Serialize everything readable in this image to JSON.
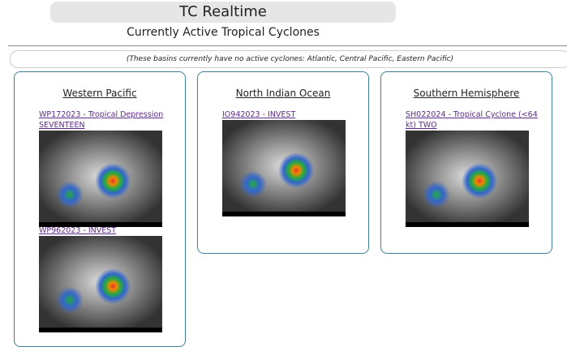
{
  "header": {
    "title": "TC Realtime",
    "subtitle": "Currently Active Tropical Cyclones"
  },
  "notice": "(These basins currently have no active cyclones: Atlantic, Central Pacific, Eastern Pacific)",
  "basins": [
    {
      "name": "Western Pacific",
      "storms": [
        {
          "label": "WP172023 - Tropical Depression SEVENTEEN"
        },
        {
          "label": "WP962023 - INVEST"
        }
      ]
    },
    {
      "name": "North Indian Ocean",
      "storms": [
        {
          "label": "IO942023 - INVEST"
        }
      ]
    },
    {
      "name": "Southern Hemisphere",
      "storms": [
        {
          "label": "SH022024 - Tropical Cyclone (<64 kt) TWO"
        }
      ]
    }
  ]
}
